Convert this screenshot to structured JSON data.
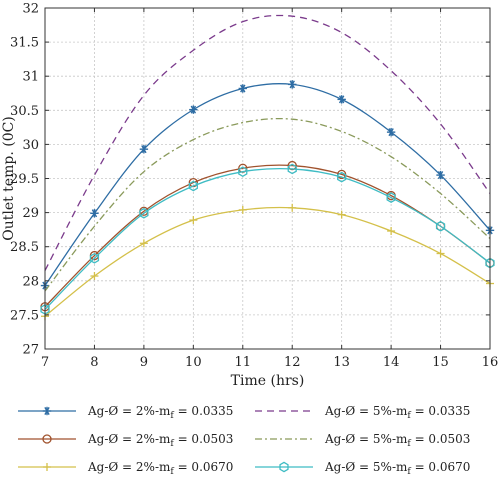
{
  "chart_data": {
    "type": "line",
    "xlabel": "Time (hrs)",
    "ylabel": "Outlet temp. (0C)",
    "xlim": [
      7,
      16
    ],
    "ylim": [
      27,
      32
    ],
    "xticks": [
      7,
      8,
      9,
      10,
      11,
      12,
      13,
      14,
      15,
      16
    ],
    "yticks": [
      27,
      27.5,
      28,
      28.5,
      29,
      29.5,
      30,
      30.5,
      31,
      31.5,
      32
    ],
    "grid": true,
    "legend_position": "bottom",
    "x": [
      7,
      8,
      9,
      10,
      11,
      12,
      13,
      14,
      15,
      16
    ],
    "series": [
      {
        "name": "Ag-Ø = 2%-m",
        "name_sub": "f",
        "name_value": " = 0.0335",
        "color": "#2e6da4",
        "dash": "",
        "marker": "star",
        "values": [
          27.93,
          28.99,
          29.93,
          30.51,
          30.82,
          30.88,
          30.66,
          30.18,
          29.55,
          28.74
        ],
        "marked": true
      },
      {
        "name": "Ag-Ø = 5%-m",
        "name_sub": "f",
        "name_value": " = 0.0335",
        "color": "#7b3b8c",
        "dash": "7,5",
        "marker": "none",
        "values": [
          28.15,
          29.55,
          30.72,
          31.38,
          31.8,
          31.88,
          31.64,
          31.08,
          30.3,
          29.28
        ],
        "marked": false
      },
      {
        "name": "Ag-Ø = 2%-m",
        "name_sub": "f",
        "name_value": " = 0.0503",
        "color": "#a0522d",
        "dash": "",
        "marker": "circle",
        "values": [
          27.62,
          28.37,
          29.02,
          29.44,
          29.65,
          29.69,
          29.56,
          29.25,
          28.8,
          28.26
        ],
        "marked": true
      },
      {
        "name": "Ag-Ø = 5%-m",
        "name_sub": "f",
        "name_value": " = 0.0503",
        "color": "#8a9a5b",
        "dash": "7,3,2,3",
        "marker": "none",
        "values": [
          27.85,
          28.8,
          29.6,
          30.07,
          30.32,
          30.37,
          30.19,
          29.82,
          29.28,
          28.62
        ],
        "marked": false
      },
      {
        "name": "Ag-Ø = 2%-m",
        "name_sub": "f",
        "name_value": " = 0.0670",
        "color": "#d4c04a",
        "dash": "",
        "marker": "plus",
        "values": [
          27.48,
          28.07,
          28.55,
          28.89,
          29.04,
          29.07,
          28.97,
          28.73,
          28.4,
          27.96
        ],
        "marked": true
      },
      {
        "name": "Ag-Ø = 5%-m",
        "name_sub": "f",
        "name_value": " = 0.0670",
        "color": "#3fbcc4",
        "dash": "",
        "marker": "hexagon",
        "values": [
          27.58,
          28.33,
          28.99,
          29.39,
          29.6,
          29.64,
          29.52,
          29.22,
          28.8,
          28.26
        ],
        "marked": true
      }
    ]
  }
}
